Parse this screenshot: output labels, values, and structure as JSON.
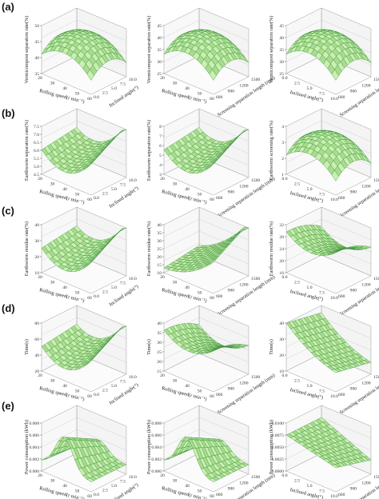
{
  "figure": {
    "row_labels": [
      "(a)",
      "(b)",
      "(c)",
      "(d)",
      "(e)"
    ]
  },
  "chart_data": [
    {
      "type": "surface",
      "row": 0,
      "col": 0,
      "shape": "dome",
      "zlabel": "Vermicompost separation rate(%)",
      "xlabel": "Rolling speed(r min⁻¹)",
      "ylabel": "Inclined angle(°)",
      "zticks": [
        "35",
        "40",
        "45",
        "50"
      ],
      "xticks": [
        "20",
        "30",
        "40",
        "50",
        "60"
      ],
      "yticks": [
        "0.0",
        "2.5",
        "5.0",
        "7.5",
        "10.0"
      ],
      "zlim": [
        35,
        50
      ]
    },
    {
      "type": "surface",
      "row": 0,
      "col": 1,
      "shape": "dome",
      "zlabel": "Vermicompost separation rate(%)",
      "xlabel": "Rolling speed(r min⁻¹)",
      "ylabel": "Screening separation length (mm)",
      "zticks": [
        "25",
        "30",
        "35",
        "40",
        "45"
      ],
      "xticks": [
        "20",
        "30",
        "40",
        "50",
        "60"
      ],
      "yticks": [
        "600",
        "900",
        "1200",
        "1500"
      ],
      "zlim": [
        25,
        45
      ]
    },
    {
      "type": "surface",
      "row": 0,
      "col": 2,
      "shape": "dome",
      "zlabel": "Vermicompost separation rate(%)",
      "xlabel": "Inclined angle(°)",
      "ylabel": "Screening separation length (mm)",
      "zticks": [
        "25",
        "30",
        "35",
        "40",
        "45"
      ],
      "xticks": [
        "0.0",
        "2.5",
        "5.0",
        "7.5",
        "10.0"
      ],
      "yticks": [
        "600",
        "900",
        "1200",
        "1500"
      ],
      "zlim": [
        25,
        45
      ]
    },
    {
      "type": "surface",
      "row": 1,
      "col": 0,
      "shape": "valley",
      "zlabel": "Earthworm separation rate(%)",
      "xlabel": "Rolling speed(r min⁻¹)",
      "ylabel": "Inclined angle(°)",
      "zticks": [
        "4.5",
        "5.0",
        "5.5",
        "6.0",
        "6.5",
        "7.0",
        "7.5"
      ],
      "xticks": [
        "20",
        "30",
        "40",
        "50",
        "60"
      ],
      "yticks": [
        "0.0",
        "2.5",
        "5.0",
        "7.5",
        "10.0"
      ],
      "zlim": [
        4.5,
        7.5
      ]
    },
    {
      "type": "surface",
      "row": 1,
      "col": 1,
      "shape": "valley",
      "zlabel": "Earthworm separation rate(%)",
      "xlabel": "Rolling speed(r min⁻¹)",
      "ylabel": "Screening separation length (mm)",
      "zticks": [
        "3",
        "4",
        "5",
        "6",
        "7",
        "8"
      ],
      "xticks": [
        "20",
        "30",
        "40",
        "50",
        "60"
      ],
      "yticks": [
        "600",
        "900",
        "1200",
        "1500"
      ],
      "zlim": [
        3,
        8
      ]
    },
    {
      "type": "surface",
      "row": 1,
      "col": 2,
      "shape": "dome",
      "zlabel": "Earthworm screening rate(%)",
      "xlabel": "Inclined angle(°)",
      "ylabel": "Screening separation length (mm)",
      "zticks": [
        "1",
        "2",
        "3",
        "4"
      ],
      "xticks": [
        "0.0",
        "2.5",
        "5.0",
        "7.5",
        "10.0"
      ],
      "yticks": [
        "600",
        "900",
        "1200",
        "1500"
      ],
      "zlim": [
        1,
        4
      ]
    },
    {
      "type": "surface",
      "row": 2,
      "col": 0,
      "shape": "valley",
      "zlabel": "Earthworm residue rate(%)",
      "xlabel": "Rolling speed(r min⁻¹)",
      "ylabel": "Inclined angle(°)",
      "zticks": [
        "10",
        "20",
        "30",
        "40"
      ],
      "xticks": [
        "20",
        "30",
        "40",
        "50",
        "60"
      ],
      "yticks": [
        "0.0",
        "2.5",
        "5.0",
        "7.5",
        "10.0"
      ],
      "zlim": [
        10,
        40
      ]
    },
    {
      "type": "surface",
      "row": 2,
      "col": 1,
      "shape": "rising",
      "zlabel": "Earthworm residue rate(%)",
      "xlabel": "Rolling speed(r min⁻¹)",
      "ylabel": "Screening separation length (mm)",
      "zticks": [
        "10",
        "15",
        "20",
        "25",
        "30",
        "35",
        "40"
      ],
      "xticks": [
        "20",
        "30",
        "40",
        "50",
        "60"
      ],
      "yticks": [
        "600",
        "900",
        "1200",
        "1500"
      ],
      "zlim": [
        10,
        40
      ]
    },
    {
      "type": "surface",
      "row": 2,
      "col": 2,
      "shape": "saddle",
      "zlabel": "Earthworm residue rate(%)",
      "xlabel": "Inclined angle(°)",
      "ylabel": "Screening separation length (mm)",
      "zticks": [
        "16",
        "20",
        "24",
        "28",
        "32"
      ],
      "xticks": [
        "0.0",
        "2.5",
        "5.0",
        "7.5",
        "10.0"
      ],
      "yticks": [
        "600",
        "900",
        "1200",
        "1500"
      ],
      "zlim": [
        16,
        32
      ]
    },
    {
      "type": "surface",
      "row": 3,
      "col": 0,
      "shape": "valley",
      "zlabel": "Time(s)",
      "xlabel": "Rolling speed(r min⁻¹)",
      "ylabel": "Inclined angle(°)",
      "zticks": [
        "20",
        "40",
        "60",
        "80"
      ],
      "xticks": [
        "20",
        "30",
        "40",
        "50",
        "60"
      ],
      "yticks": [
        "0.0",
        "2.5",
        "5.0",
        "7.5",
        "10.0"
      ],
      "zlim": [
        20,
        80
      ]
    },
    {
      "type": "surface",
      "row": 3,
      "col": 1,
      "shape": "saddle",
      "zlabel": "Time(s)",
      "xlabel": "Rolling speed(r min⁻¹)",
      "ylabel": "Screening separation length (mm)",
      "zticks": [
        "15",
        "20",
        "25",
        "30",
        "35",
        "40"
      ],
      "xticks": [
        "20",
        "30",
        "40",
        "50",
        "60"
      ],
      "yticks": [
        "600",
        "900",
        "1200",
        "1500"
      ],
      "zlim": [
        15,
        40
      ]
    },
    {
      "type": "surface",
      "row": 3,
      "col": 2,
      "shape": "falling",
      "zlabel": "Time(s)",
      "xlabel": "Inclined angle(°)",
      "ylabel": "Screening separation length (mm)",
      "zticks": [
        "10",
        "20",
        "30",
        "40"
      ],
      "xticks": [
        "0.0",
        "2.5",
        "5.0",
        "7.5",
        "10.0"
      ],
      "yticks": [
        "600",
        "900",
        "1200",
        "1500"
      ],
      "zlim": [
        10,
        40
      ]
    },
    {
      "type": "surface",
      "row": 4,
      "col": 0,
      "shape": "peak",
      "zlabel": "Power consumption (kWh)",
      "xlabel": "Rolling speed(r min⁻¹)",
      "ylabel": "Inclined angle(°)",
      "zticks": [
        "0.000",
        "0.002",
        "0.004",
        "0.006",
        "0.008"
      ],
      "xticks": [
        "20",
        "30",
        "40",
        "50",
        "60"
      ],
      "yticks": [
        "0.0",
        "2.5",
        "5.0",
        "7.5",
        "10.0"
      ],
      "zlim": [
        0,
        0.008
      ]
    },
    {
      "type": "surface",
      "row": 4,
      "col": 1,
      "shape": "peak",
      "zlabel": "Power consumption (kWh)",
      "xlabel": "Rolling speed(r min⁻¹)",
      "ylabel": "Screening separation length (mm)",
      "zticks": [
        "0.000",
        "0.002",
        "0.004",
        "0.006",
        "0.008"
      ],
      "xticks": [
        "20",
        "30",
        "40",
        "50",
        "60"
      ],
      "yticks": [
        "600",
        "900",
        "1200",
        "1500"
      ],
      "zlim": [
        0,
        0.008
      ]
    },
    {
      "type": "surface",
      "row": 4,
      "col": 2,
      "shape": "flat",
      "zlabel": "Power consumption (kWh)",
      "xlabel": "Inclined angle(°)",
      "ylabel": "Screening separation length (mm)",
      "zticks": [
        "0.0000",
        "0.0025",
        "0.0050",
        "0.0075",
        "0.0100"
      ],
      "xticks": [
        "0.0",
        "2.5",
        "5.0",
        "7.5",
        "10.0"
      ],
      "yticks": [
        "600",
        "900",
        "1200",
        "1500"
      ],
      "zlim": [
        0,
        0.01
      ]
    }
  ],
  "style": {
    "surface_fill": "#c9efb2",
    "surface_fill_dark": "#a9dc8e",
    "mesh_line": "#2f8a2f",
    "box_line": "#9a9a9a",
    "grid_line": "#c8c8c8"
  }
}
